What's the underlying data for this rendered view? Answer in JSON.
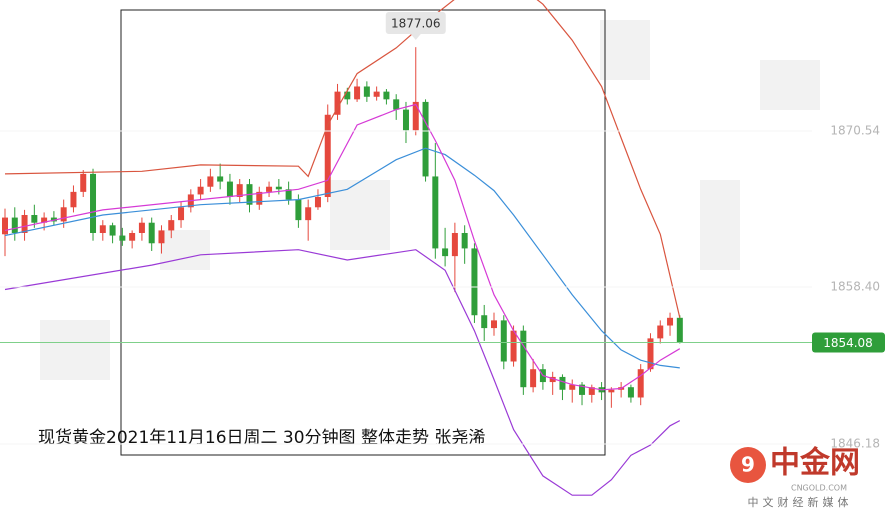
{
  "chart_data": {
    "type": "candlestick",
    "caption": "现货黄金2021年11月16日周二 30分钟图 整体走势 张尧浠",
    "watermark": {
      "logo": "中金网",
      "site": "CNGOLD.COM",
      "slogan": "中文财经新媒体"
    },
    "ylim": [
      1840.5,
      1880.73
    ],
    "yticks": [
      1870.54,
      {
        "value": 1858.4,
        "label": "1858.40"
      },
      1846.18
    ],
    "high_label": 1877.06,
    "last_price": 1854.08,
    "up_color": "#e5483d",
    "down_color": "#2f9e3a",
    "open": [
      1862.5,
      1863.8,
      1862.6,
      1864.0,
      1863.4,
      1863.8,
      1863.5,
      1864.6,
      1865.8,
      1867.2,
      1862.6,
      1863.2,
      1862.4,
      1862.0,
      1862.6,
      1863.4,
      1861.8,
      1862.8,
      1863.6,
      1864.6,
      1865.6,
      1866.2,
      1867.0,
      1866.6,
      1865.4,
      1866.4,
      1864.8,
      1865.8,
      1866.2,
      1866.0,
      1865.2,
      1863.6,
      1864.6,
      1865.4,
      1871.8,
      1873.6,
      1873.0,
      1874.0,
      1873.2,
      1873.6,
      1873.0,
      1872.2,
      1870.6,
      1872.8,
      1867.0,
      1861.4,
      1860.8,
      1862.6,
      1861.4,
      1856.2,
      1855.2,
      1855.8,
      1852.6,
      1855.0,
      1850.6,
      1852.0,
      1851.0,
      1851.4,
      1850.4,
      1850.8,
      1850.0,
      1850.6,
      1850.2,
      1850.4,
      1850.6,
      1849.8,
      1852.0,
      1854.4,
      1855.4,
      1856.0
    ],
    "high": [
      1864.5,
      1864.6,
      1864.4,
      1864.8,
      1864.2,
      1864.3,
      1865.2,
      1866.3,
      1867.5,
      1867.6,
      1863.6,
      1863.4,
      1863.0,
      1862.8,
      1863.8,
      1863.8,
      1863.2,
      1864.0,
      1865.0,
      1866.0,
      1866.8,
      1867.6,
      1868.0,
      1867.2,
      1866.8,
      1866.8,
      1866.2,
      1866.6,
      1866.8,
      1866.6,
      1865.6,
      1865.2,
      1866.0,
      1872.6,
      1874.2,
      1873.9,
      1874.6,
      1874.4,
      1874.0,
      1873.8,
      1873.4,
      1872.8,
      1877.06,
      1873.0,
      1869.6,
      1863.0,
      1863.4,
      1863.2,
      1861.8,
      1857.0,
      1856.4,
      1856.2,
      1855.4,
      1855.4,
      1852.8,
      1852.4,
      1851.8,
      1851.6,
      1851.2,
      1851.0,
      1850.8,
      1851.0,
      1850.6,
      1851.0,
      1850.8,
      1852.4,
      1854.8,
      1855.8,
      1856.4,
      1856.2
    ],
    "low": [
      1860.8,
      1862.0,
      1862.0,
      1863.0,
      1862.8,
      1863.2,
      1863.0,
      1864.2,
      1865.4,
      1862.0,
      1862.0,
      1861.8,
      1861.6,
      1861.4,
      1862.0,
      1861.2,
      1861.0,
      1862.2,
      1863.0,
      1864.2,
      1865.2,
      1865.8,
      1866.0,
      1864.8,
      1865.0,
      1864.2,
      1864.4,
      1865.4,
      1865.6,
      1864.8,
      1863.0,
      1862.0,
      1864.4,
      1865.0,
      1871.4,
      1872.6,
      1872.8,
      1872.8,
      1872.9,
      1872.6,
      1871.4,
      1869.6,
      1870.2,
      1866.6,
      1860.6,
      1860.0,
      1858.0,
      1860.2,
      1855.6,
      1854.2,
      1854.6,
      1852.0,
      1852.2,
      1850.0,
      1850.2,
      1850.4,
      1850.0,
      1849.6,
      1849.4,
      1849.2,
      1849.4,
      1849.6,
      1849.0,
      1849.8,
      1849.4,
      1849.2,
      1851.8,
      1854.0,
      1854.6,
      1854.0
    ],
    "close": [
      1863.8,
      1862.6,
      1864.0,
      1863.4,
      1863.8,
      1863.5,
      1864.6,
      1865.8,
      1867.2,
      1862.6,
      1863.2,
      1862.4,
      1862.0,
      1862.6,
      1863.4,
      1861.8,
      1862.8,
      1863.6,
      1864.6,
      1865.6,
      1866.2,
      1867.0,
      1866.6,
      1865.4,
      1866.4,
      1864.8,
      1865.8,
      1866.2,
      1866.0,
      1865.2,
      1863.6,
      1864.6,
      1865.4,
      1871.8,
      1873.6,
      1873.0,
      1874.0,
      1873.2,
      1873.6,
      1873.0,
      1872.2,
      1870.6,
      1872.8,
      1867.0,
      1861.4,
      1860.8,
      1862.6,
      1861.4,
      1856.2,
      1855.2,
      1855.8,
      1852.6,
      1855.0,
      1850.6,
      1852.0,
      1851.0,
      1851.4,
      1850.4,
      1850.8,
      1850.0,
      1850.6,
      1850.2,
      1850.4,
      1850.6,
      1849.8,
      1852.0,
      1854.4,
      1855.4,
      1856.0,
      1854.08
    ],
    "series": [
      {
        "color": "#d9553f",
        "x": [
          0,
          14,
          20,
          30,
          31,
          33,
          36,
          40,
          43,
          48,
          50,
          54,
          55,
          58,
          61,
          63,
          65,
          67,
          69
        ],
        "values": [
          1867.2,
          1867.4,
          1867.9,
          1867.8,
          1867.0,
          1871.0,
          1875.0,
          1877.0,
          1879.0,
          1882.0,
          1882.5,
          1881.0,
          1880.4,
          1877.6,
          1874.0,
          1870.0,
          1866.0,
          1862.5,
          1856.0
        ]
      },
      {
        "color": "#3b8fd9",
        "x": [
          0,
          10,
          20,
          30,
          35,
          40,
          43,
          45,
          48,
          50,
          52,
          55,
          58,
          61,
          63,
          65,
          67,
          69
        ],
        "values": [
          1862.4,
          1864.0,
          1864.8,
          1865.2,
          1866.0,
          1868.3,
          1869.2,
          1868.7,
          1867.1,
          1865.9,
          1864.0,
          1860.9,
          1857.8,
          1855.0,
          1853.5,
          1852.7,
          1852.3,
          1852.1
        ]
      },
      {
        "color": "#d63ad6",
        "x": [
          0,
          10,
          20,
          30,
          33,
          36,
          40,
          42,
          44,
          46,
          48,
          50,
          52,
          55,
          58,
          61,
          63,
          65,
          67,
          69
        ],
        "values": [
          1862.8,
          1864.4,
          1865.2,
          1866.0,
          1866.7,
          1871.0,
          1872.2,
          1872.6,
          1869.8,
          1866.7,
          1862.0,
          1857.8,
          1855.0,
          1851.5,
          1850.8,
          1850.4,
          1850.5,
          1851.5,
          1852.7,
          1853.6
        ]
      },
      {
        "color": "#9a3ad6",
        "x": [
          0,
          15,
          20,
          30,
          35,
          42,
          45,
          48,
          50,
          52,
          55,
          58,
          60,
          62,
          64,
          66,
          68,
          69
        ],
        "values": [
          1858.2,
          1860.1,
          1860.9,
          1861.3,
          1860.5,
          1861.3,
          1859.7,
          1855.0,
          1851.2,
          1847.3,
          1843.7,
          1842.2,
          1842.2,
          1843.4,
          1845.3,
          1846.1,
          1847.6,
          1848.0
        ]
      }
    ]
  }
}
